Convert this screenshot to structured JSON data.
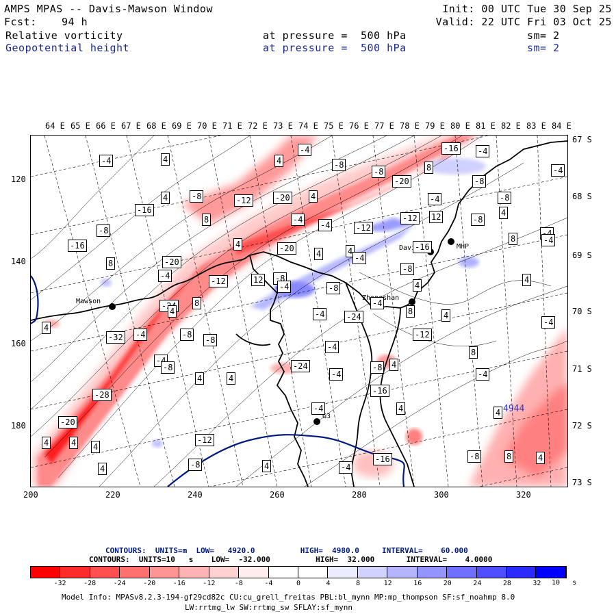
{
  "header": {
    "title": "AMPS MPAS -- Davis-Mawson Window",
    "fcst_label": "Fcst:",
    "fcst_value": "94 h",
    "init": "Init: 00 UTC Tue 30 Sep 25",
    "valid": "Valid: 22 UTC Fri 03 Oct 25",
    "field1_name": "Relative vorticity",
    "field1_level": "at pressure =  500 hPa",
    "field1_sm": "sm= 2",
    "field2_name": "Geopotential height",
    "field2_level": "at pressure =  500 hPa",
    "field2_sm": "sm= 2"
  },
  "map": {
    "lon_labels": [
      "64 E",
      "65 E",
      "66 E",
      "67 E",
      "68 E",
      "69 E",
      "70 E",
      "71 E",
      "72 E",
      "73 E",
      "74 E",
      "75 E",
      "76 E",
      "77 E",
      "78 E",
      "79 E",
      "80 E",
      "81 E",
      "82 E",
      "83 E",
      "84 E"
    ],
    "lat_labels": [
      "67 S",
      "68 S",
      "69 S",
      "70 S",
      "71 S",
      "72 S",
      "73 S"
    ],
    "x_ticks": [
      "200",
      "220",
      "240",
      "260",
      "280",
      "300",
      "320"
    ],
    "y_ticks": [
      "120",
      "140",
      "160",
      "180"
    ],
    "stations": [
      {
        "name": "Mawson"
      },
      {
        "name": "Davis"
      },
      {
        "name": "MHP"
      },
      {
        "name": "Zhongshan"
      },
      {
        "name": "G3"
      }
    ],
    "height_label": "4944",
    "contour_labels": [
      "-4",
      "4",
      "-4",
      "-8",
      "-16",
      "-4",
      "4",
      "-8",
      "-20",
      "8",
      "-8",
      "-4",
      "4",
      "-8",
      "-12",
      "-20",
      "4",
      "-4",
      "-8",
      "-16",
      "8",
      "-4",
      "-4",
      "-12",
      "-12",
      "12",
      "-8",
      "4",
      "-4",
      "-16",
      "-8",
      "4",
      "-20",
      "-20",
      "4",
      "-16",
      "8",
      "-4",
      "8",
      "4",
      "-4",
      "-8",
      "-12",
      "12",
      "-8",
      "-4",
      "-24",
      "-8",
      "4",
      "4",
      "-4",
      "8",
      "4",
      "-4",
      "-24",
      "-4",
      "8",
      "4",
      "-4",
      "4",
      "-32",
      "-4",
      "-8",
      "-8",
      "-4",
      "-12",
      "8",
      "-4",
      "-24",
      "-8",
      "4",
      "-4",
      "-4",
      "-28",
      "-8",
      "4",
      "4",
      "-4",
      "-16",
      "4",
      "4",
      "-12",
      "-20",
      "4",
      "4",
      "4",
      "-8",
      "-16",
      "-8",
      "8",
      "4",
      "4",
      "4",
      "-4"
    ]
  },
  "footer": {
    "contour1": "CONTOURS:  UNITS=m  LOW=   4920.0          HIGH=  4980.0     INTERVAL=    60.000",
    "contour2": "CONTOURS:  UNITS=10   s    LOW=  -32.000          HIGH=  32.000       INTERVAL=    4.0000",
    "colorbar_ticks": [
      "-32",
      "-28",
      "-24",
      "-20",
      "-16",
      "-12",
      "-8",
      "-4",
      "0",
      "4",
      "8",
      "12",
      "16",
      "20",
      "24",
      "28",
      "32"
    ],
    "colorbar_units": "10   s",
    "colorbar_colors": [
      "#ff0000",
      "#ff2a2a",
      "#ff4f4f",
      "#ff7070",
      "#ff9494",
      "#ffb4b4",
      "#ffd2d2",
      "#ffecec",
      "#ffffff",
      "#ffffff",
      "#ececff",
      "#d2d2ff",
      "#b4b4ff",
      "#9494ff",
      "#7070ff",
      "#4f4fff",
      "#2a2aff",
      "#0000ff"
    ],
    "model_info": "Model Info: MPASv8.2.3-194-gf29cd82c CU:cu_grell_freitas PBL:bl_mynn MP:mp_thompson SF:sf_noahmp 8.0",
    "model_info2": "LW:rrtmg_lw SW:rrtmg_sw SFLAY:sf_mynn"
  }
}
